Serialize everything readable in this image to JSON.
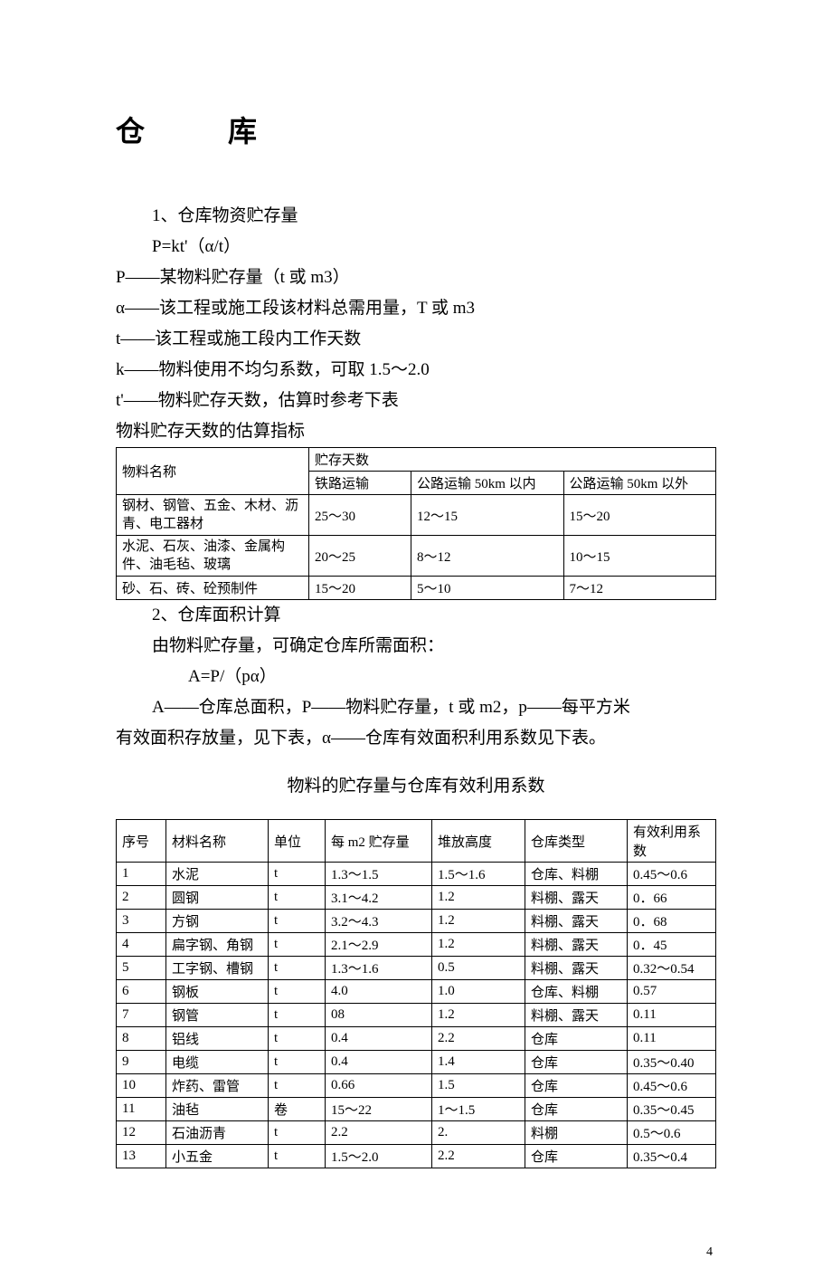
{
  "title": "仓　库",
  "section1": {
    "heading": "1、仓库物资贮存量",
    "formula": "P=kt'（α/t）",
    "def_P": "P——某物料贮存量（t 或 m3）",
    "def_alpha": "α——该工程或施工段该材料总需用量，T 或 m3",
    "def_t": "t——该工程或施工段内工作天数",
    "def_k": "k——物料使用不均匀系数，可取 1.5～2.0",
    "def_tp": "t'——物料贮存天数，估算时参考下表",
    "table_caption": "物料贮存天数的估算指标"
  },
  "table1": {
    "header_material": "物料名称",
    "header_days": "贮存天数",
    "header_rail": "铁路运输",
    "header_road_in": "公路运输 50km 以内",
    "header_road_out": "公路运输 50km 以外",
    "rows": [
      {
        "name": "钢材、钢管、五金、木材、沥青、电工器材",
        "rail": "25～30",
        "in": "12～15",
        "out": "15～20"
      },
      {
        "name": "水泥、石灰、油漆、金属构件、油毛毡、玻璃",
        "rail": "20～25",
        "in": "8～12",
        "out": "10～15"
      },
      {
        "name": "砂、石、砖、砼预制件",
        "rail": "15～20",
        "in": "5～10",
        "out": "7～12"
      }
    ]
  },
  "section2": {
    "heading": "2、仓库面积计算",
    "line1": "由物料贮存量，可确定仓库所需面积：",
    "formula": "A=P/（pα）",
    "line2": "A——仓库总面积，P——物料贮存量，t 或 m2，p——每平方米",
    "line3": "有效面积存放量，见下表，α——仓库有效面积利用系数见下表。",
    "table_caption": "物料的贮存量与仓库有效利用系数"
  },
  "table2": {
    "headers": {
      "no": "序号",
      "name": "材料名称",
      "unit": "单位",
      "per": "每 m2 贮存量",
      "height": "堆放高度",
      "type": "仓库类型",
      "coef": "有效利用系数"
    },
    "rows": [
      {
        "no": "1",
        "name": "水泥",
        "unit": "t",
        "per": "1.3～1.5",
        "height": "1.5～1.6",
        "type": "仓库、料棚",
        "coef": "0.45～0.6"
      },
      {
        "no": "2",
        "name": "圆钢",
        "unit": "t",
        "per": "3.1～4.2",
        "height": "1.2",
        "type": "料棚、露天",
        "coef": "0．66"
      },
      {
        "no": "3",
        "name": "方钢",
        "unit": "t",
        "per": "3.2～4.3",
        "height": "1.2",
        "type": "料棚、露天",
        "coef": "0．68"
      },
      {
        "no": "4",
        "name": "扁字钢、角钢",
        "unit": "t",
        "per": "2.1～2.9",
        "height": "1.2",
        "type": "料棚、露天",
        "coef": "0．45"
      },
      {
        "no": "5",
        "name": "工字钢、槽钢",
        "unit": "t",
        "per": "1.3～1.6",
        "height": "0.5",
        "type": "料棚、露天",
        "coef": "0.32～0.54"
      },
      {
        "no": "6",
        "name": "钢板",
        "unit": "t",
        "per": "4.0",
        "height": "1.0",
        "type": "仓库、料棚",
        "coef": "0.57"
      },
      {
        "no": "7",
        "name": "钢管",
        "unit": "t",
        "per": "08",
        "height": "1.2",
        "type": "料棚、露天",
        "coef": "0.11"
      },
      {
        "no": "8",
        "name": "铝线",
        "unit": "t",
        "per": "0.4",
        "height": "2.2",
        "type": "仓库",
        "coef": "0.11"
      },
      {
        "no": "9",
        "name": "电缆",
        "unit": "t",
        "per": "0.4",
        "height": "1.4",
        "type": "仓库",
        "coef": "0.35～0.40"
      },
      {
        "no": "10",
        "name": "炸药、雷管",
        "unit": "t",
        "per": "0.66",
        "height": "1.5",
        "type": "仓库",
        "coef": "0.45～0.6"
      },
      {
        "no": "11",
        "name": "油毡",
        "unit": "卷",
        "per": "15～22",
        "height": "1～1.5",
        "type": "仓库",
        "coef": "0.35～0.45"
      },
      {
        "no": "12",
        "name": "石油沥青",
        "unit": "t",
        "per": "2.2",
        "height": "2.",
        "type": "料棚",
        "coef": "0.5～0.6"
      },
      {
        "no": "13",
        "name": "小五金",
        "unit": "t",
        "per": "1.5～2.0",
        "height": "2.2",
        "type": "仓库",
        "coef": "0.35～0.4"
      }
    ]
  },
  "page_number": "4"
}
